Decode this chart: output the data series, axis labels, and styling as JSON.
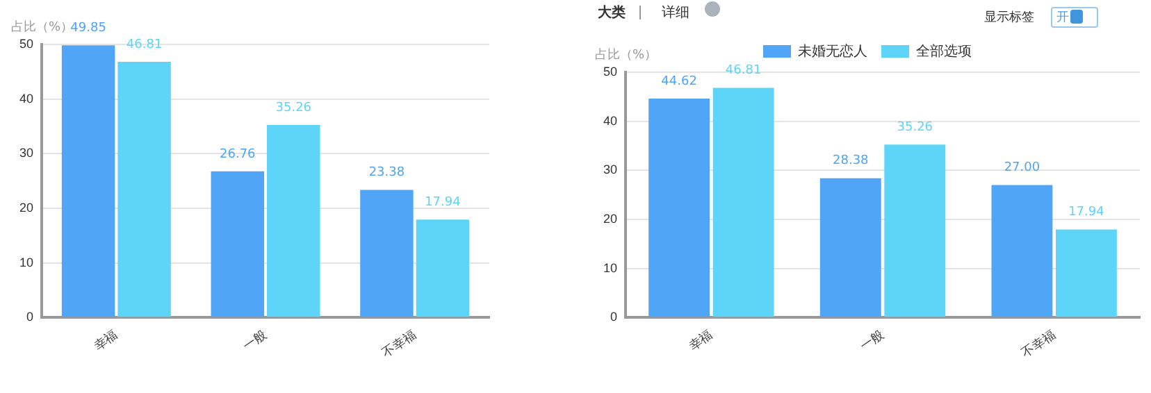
{
  "chart_data": [
    {
      "type": "bar",
      "categories": [
        "幸福",
        "一般",
        "不幸福"
      ],
      "ylabel": "占比（%）",
      "ylim": [
        0,
        50
      ],
      "yticks": [
        0,
        10,
        20,
        30,
        40,
        50
      ],
      "grid": "y",
      "legend": false,
      "series": [
        {
          "color": "#51a5f6",
          "values": [
            49.85,
            26.76,
            23.38
          ],
          "value_labels": [
            "49.85",
            "26.76",
            "23.38"
          ]
        },
        {
          "color": "#5ed4f8",
          "values": [
            46.81,
            35.26,
            17.94
          ],
          "value_labels": [
            "46.81",
            "35.26",
            "17.94"
          ]
        }
      ]
    },
    {
      "type": "bar",
      "categories": [
        "幸福",
        "一般",
        "不幸福"
      ],
      "ylabel": "占比（%）",
      "ylim": [
        0,
        50
      ],
      "yticks": [
        0,
        10,
        20,
        30,
        40,
        50
      ],
      "grid": "y",
      "legend": "top",
      "annotations": [
        "大类",
        "详细",
        "显示标签",
        "开"
      ],
      "series": [
        {
          "name": "未婚无恋人",
          "color": "#51a5f6",
          "values": [
            44.62,
            28.38,
            27.0
          ],
          "value_labels": [
            "44.62",
            "28.38",
            "27.00"
          ]
        },
        {
          "name": "全部选项",
          "color": "#5ed4f8",
          "values": [
            46.81,
            35.26,
            17.94
          ],
          "value_labels": [
            "46.81",
            "35.26",
            "17.94"
          ]
        }
      ]
    }
  ]
}
